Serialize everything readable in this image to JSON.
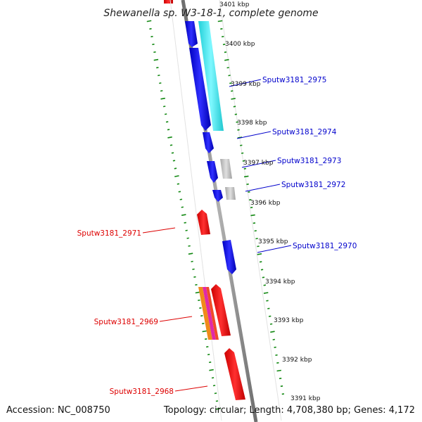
{
  "title": "Shewanella sp. W3-18-1, complete genome",
  "accession": "Accession: NC_008750",
  "summary": "Topology: circular; Length: 4,708,380 bp; Genes: 4,172",
  "kbp_labels": [
    "3401 kbp",
    "3400 kbp",
    "3399 kbp",
    "3398 kbp",
    "3397 kbp",
    "3396 kbp",
    "3395 kbp",
    "3394 kbp",
    "3393 kbp",
    "3392 kbp",
    "3391 kbp"
  ],
  "forward_genes": [
    "Sputw3181_2975",
    "Sputw3181_2974",
    "Sputw3181_2973",
    "Sputw3181_2972",
    "Sputw3181_2970"
  ],
  "reverse_genes": [
    "Sputw3181_2971",
    "Sputw3181_2969",
    "Sputw3181_2968"
  ],
  "colors": {
    "forward_cds": "#1111dd",
    "reverse_cds": "#ee1111",
    "cyan_feature": "#33e0e8",
    "gray_feature": "#b8b8b8",
    "backbone": "#888888",
    "tick": "#118811",
    "forward_label": "#0000cc",
    "reverse_label": "#dd0000"
  }
}
